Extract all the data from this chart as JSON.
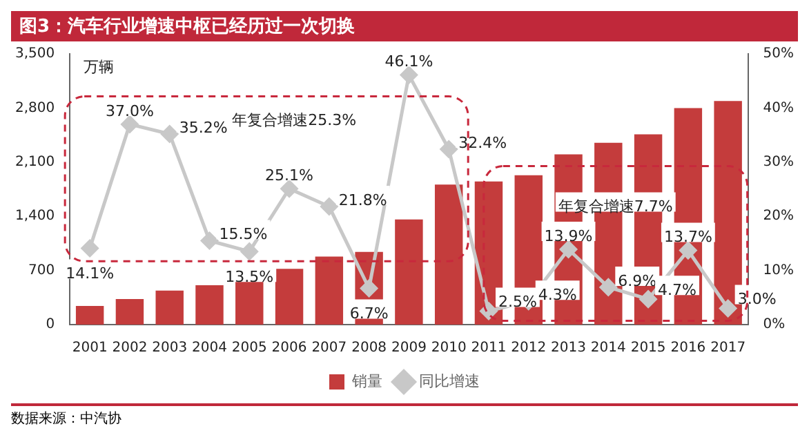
{
  "chart_data": {
    "type": "bar",
    "title": "图3：汽车行业增速中枢已经历过一次切换",
    "ylabel": "万辆",
    "categories": [
      "2001",
      "2002",
      "2003",
      "2004",
      "2005",
      "2006",
      "2007",
      "2008",
      "2009",
      "2010",
      "2011",
      "2012",
      "2013",
      "2014",
      "2015",
      "2016",
      "2017"
    ],
    "series": [
      {
        "name": "销量",
        "color": "#c43c3c",
        "values": [
          240,
          330,
          440,
          510,
          580,
          720,
          880,
          940,
          1360,
          1810,
          1850,
          1930,
          2200,
          2350,
          2460,
          2800,
          2890
        ]
      },
      {
        "name": "同比增速",
        "type": "line",
        "axis": "y2",
        "color": "#c8c8c8",
        "marker": "diamond",
        "values": [
          14.1,
          37.0,
          35.2,
          15.5,
          13.5,
          25.1,
          21.8,
          6.7,
          46.1,
          32.4,
          2.5,
          4.3,
          13.9,
          6.9,
          4.7,
          13.7,
          3.0
        ],
        "value_labels": [
          "14.1%",
          "37.0%",
          "35.2%",
          "15.5%",
          "13.5%",
          "25.1%",
          "21.8%",
          "6.7%",
          "46.1%",
          "32.4%",
          "2.5%",
          "4.3%",
          "13.9%",
          "6.9%",
          "4.7%",
          "13.7%",
          "3.0%"
        ]
      }
    ],
    "ylim": [
      0,
      3500
    ],
    "yticks": [
      {
        "value": 0,
        "label": "0"
      },
      {
        "value": 700,
        "label": "700"
      },
      {
        "value": 1400,
        "label": "1,400"
      },
      {
        "value": 2100,
        "label": "2,100"
      },
      {
        "value": 2800,
        "label": "2,800"
      },
      {
        "value": 3500,
        "label": "3,500"
      }
    ],
    "y2lim": [
      0,
      50
    ],
    "y2ticks": [
      {
        "value": 0,
        "label": "0%"
      },
      {
        "value": 10,
        "label": "10%"
      },
      {
        "value": 20,
        "label": "20%"
      },
      {
        "value": 30,
        "label": "30%"
      },
      {
        "value": 40,
        "label": "40%"
      },
      {
        "value": 50,
        "label": "50%"
      }
    ],
    "grid": false,
    "legend": "bottom",
    "annotations": [
      "年复合增速25.3%",
      "年复合增速7.7%",
      "数据来源：中汽协"
    ]
  }
}
